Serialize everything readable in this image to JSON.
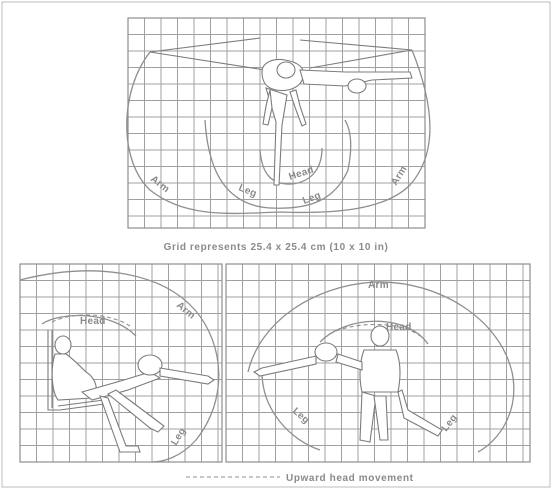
{
  "caption": "Grid represents 25.4 x 25.4 cm (10 x 10 in)",
  "legend": "Upward head movement",
  "top_panel": {
    "labels": {
      "arm_left": "Arm",
      "arm_right": "Arm",
      "head": "Head",
      "leg_left": "Leg",
      "leg_right": "Leg"
    }
  },
  "side_panel": {
    "labels": {
      "head": "Head",
      "arm": "Arm",
      "leg": "Leg"
    }
  },
  "front_panel": {
    "labels": {
      "arm": "Arm",
      "head": "Head",
      "leg_left": "Leg",
      "leg_right": "Leg"
    }
  },
  "colors": {
    "lines": "#8f8f8f",
    "grid": "#a0a0a0",
    "text": "#8a8a8a"
  }
}
